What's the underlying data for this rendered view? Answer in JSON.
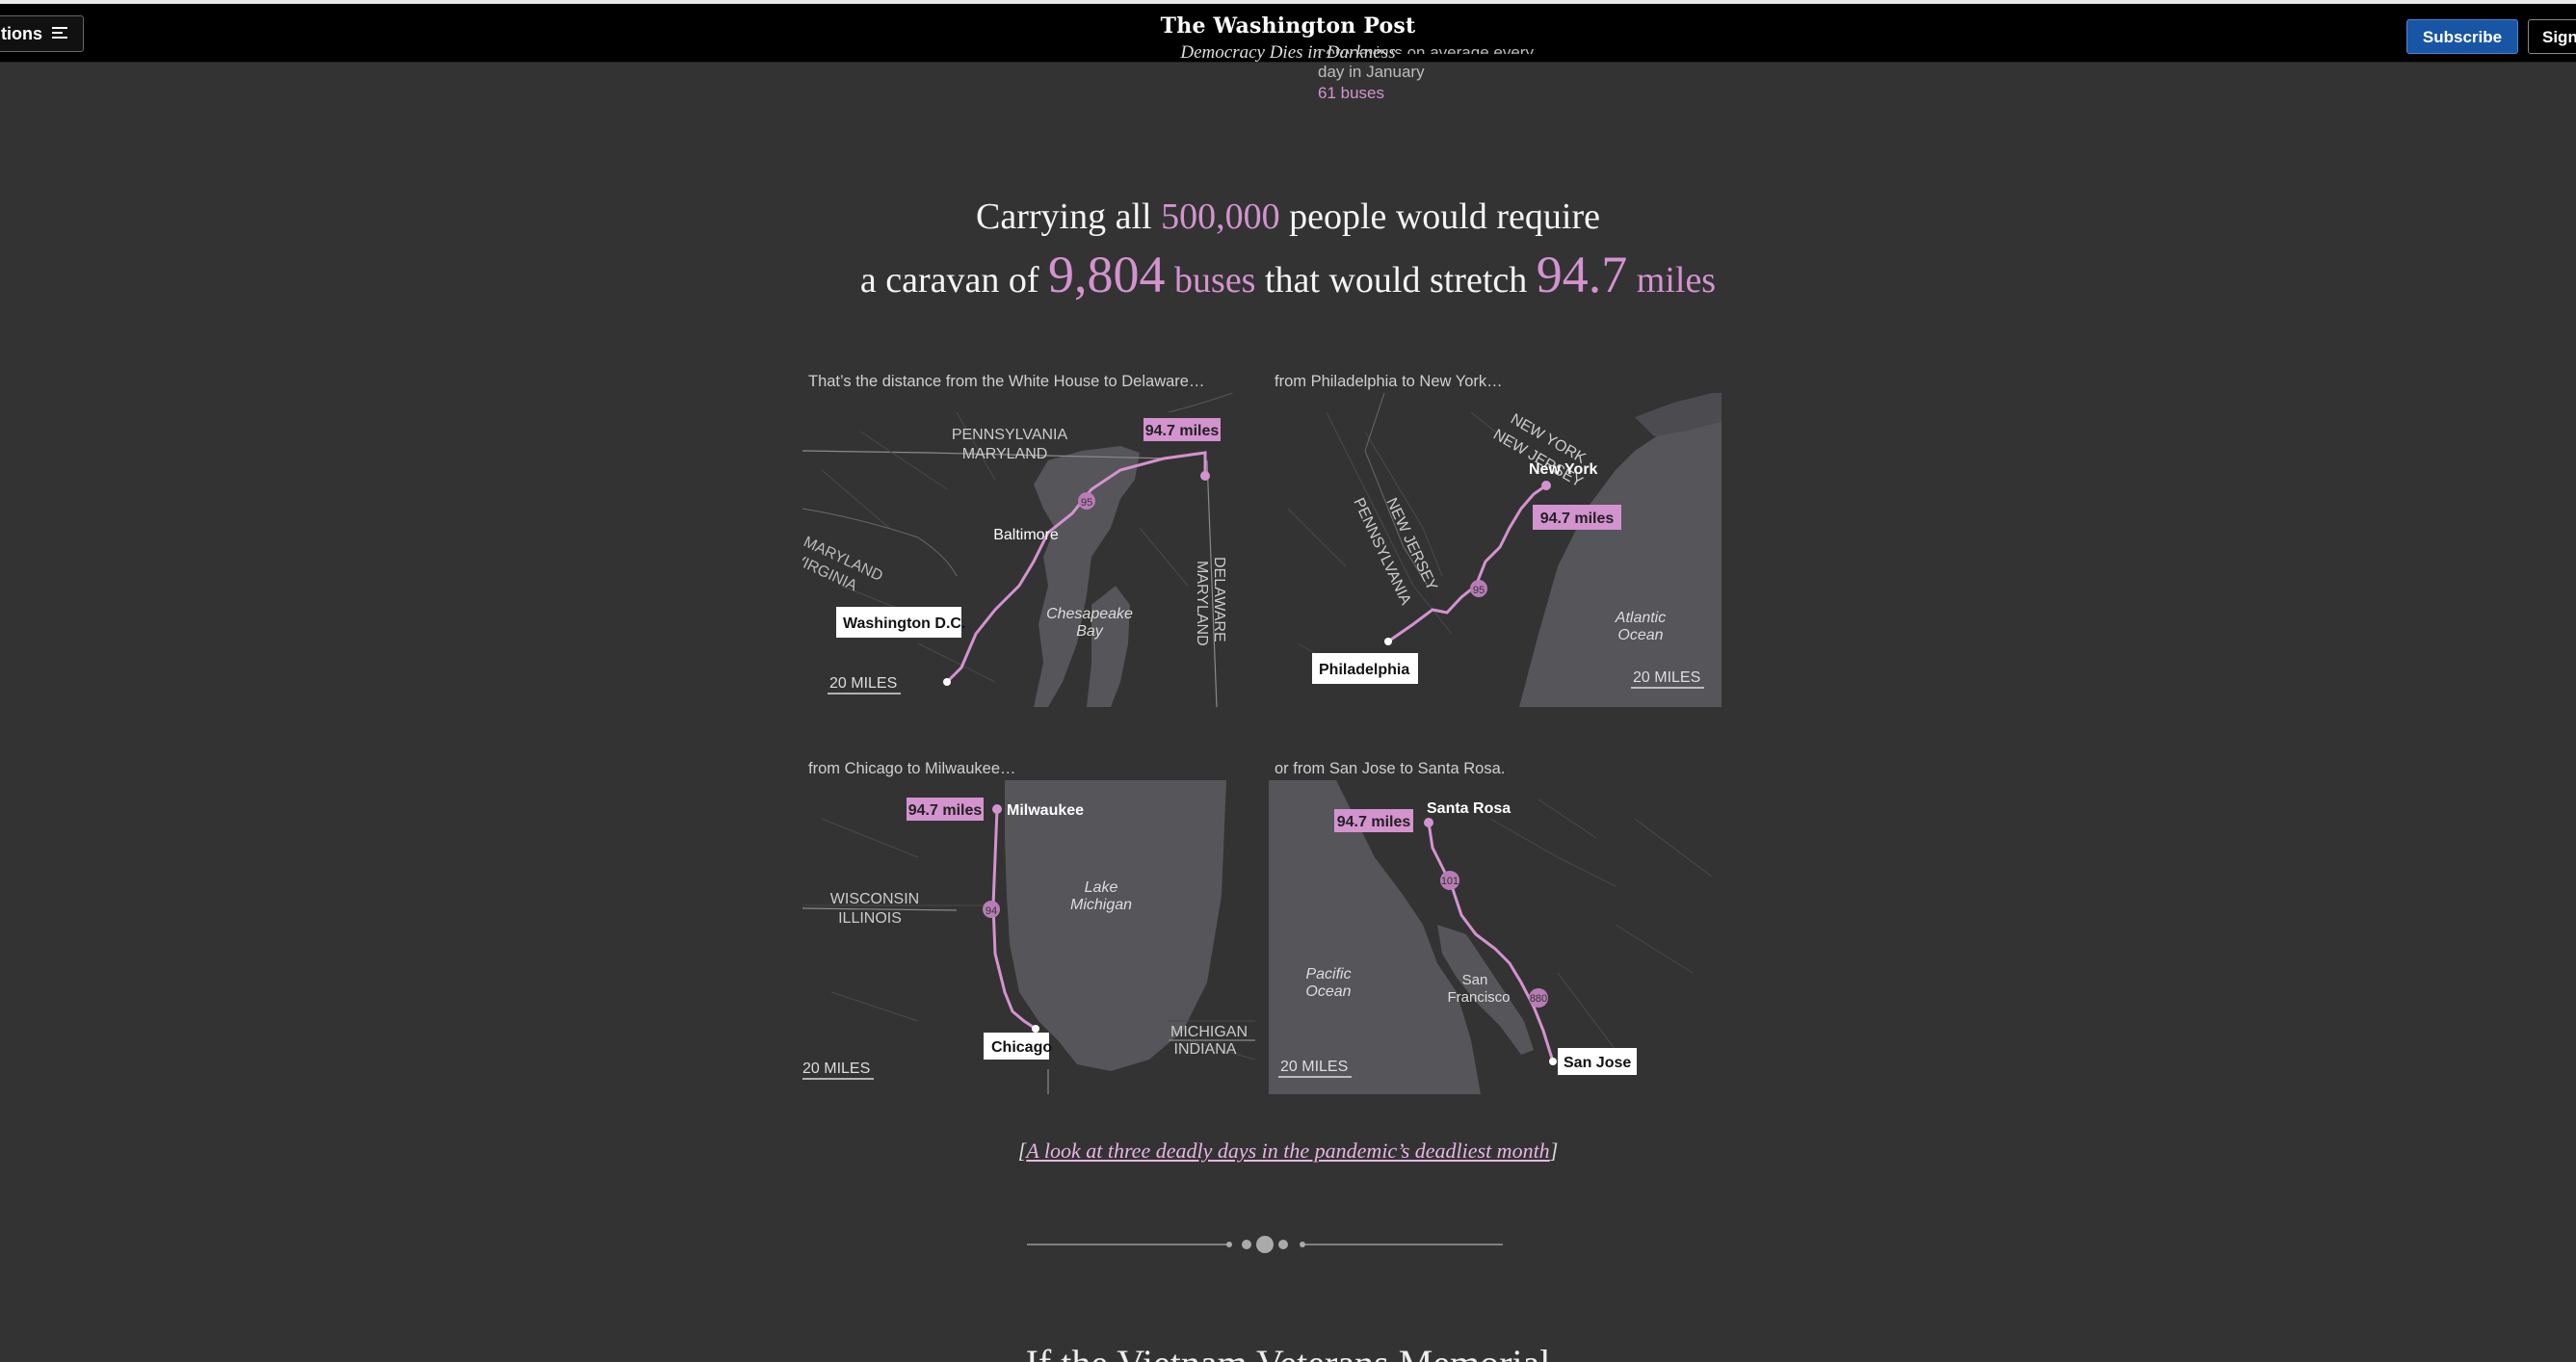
{
  "header": {
    "sections_label": "tions",
    "logo": "The Washington Post",
    "tagline": "Democracy Dies in Darkness",
    "subscribe_label": "Subscribe",
    "signin_label": "Sign"
  },
  "previous_block": {
    "line1": "coronavirus on average every",
    "line2": "day in January",
    "buses": "61 buses"
  },
  "headline": {
    "line1_pre": "Carrying all ",
    "people_count": "500,000",
    "line1_post": " people would require",
    "line2_pre": "a caravan of ",
    "bus_count": "9,804",
    "bus_unit": " buses",
    "line2_mid": " that would stretch ",
    "distance": "94.7",
    "distance_unit": " miles"
  },
  "maps": [
    {
      "caption": "That’s the distance from the White House to Delaware…",
      "distance_label": "94.7 miles",
      "start_label": "Washington D.C.",
      "scale_label": "20 MILES",
      "labels": [
        "PENNSYLVANIA",
        "MARYLAND",
        "MARYLAND",
        "VIRGINIA",
        "Baltimore",
        "Chesapeake",
        "Bay",
        "DELAWARE",
        "MARYLAND"
      ],
      "route_shield": "95"
    },
    {
      "caption": "from Philadelphia to New York…",
      "distance_label": "94.7 miles",
      "start_label": "Philadelphia",
      "end_label": "New York",
      "scale_label": "20 MILES",
      "labels": [
        "NEW YORK",
        "NEW JERSEY",
        "NEW JERSEY",
        "PENNSYLVANIA",
        "Atlantic",
        "Ocean"
      ],
      "route_shield": "95"
    },
    {
      "caption": "from Chicago to Milwaukee…",
      "distance_label": "94.7 miles",
      "start_label": "Chicago",
      "end_label": "Milwaukee",
      "scale_label": "20 MILES",
      "labels": [
        "WISCONSIN",
        "ILLINOIS",
        "Lake",
        "Michigan",
        "MICHIGAN",
        "INDIANA"
      ],
      "route_shield": "94"
    },
    {
      "caption": "or from San Jose to Santa Rosa.",
      "distance_label": "94.7 miles",
      "start_label": "San Jose",
      "end_label": "Santa Rosa",
      "scale_label": "20 MILES",
      "labels": [
        "Pacific",
        "Ocean",
        "San",
        "Francisco"
      ],
      "route_shield": "101",
      "route_shield2": "880"
    }
  ],
  "link": {
    "open": "[",
    "text": "A look at three deadly days in the pandemic’s deadliest month",
    "close": "]"
  },
  "next_heading": "If the Vietnam Veterans Memorial",
  "colors": {
    "background": "#333333",
    "accent_pink": "#d393cf",
    "subscribe_blue": "#1955a5",
    "land": "#333333",
    "water": "#55555a"
  }
}
